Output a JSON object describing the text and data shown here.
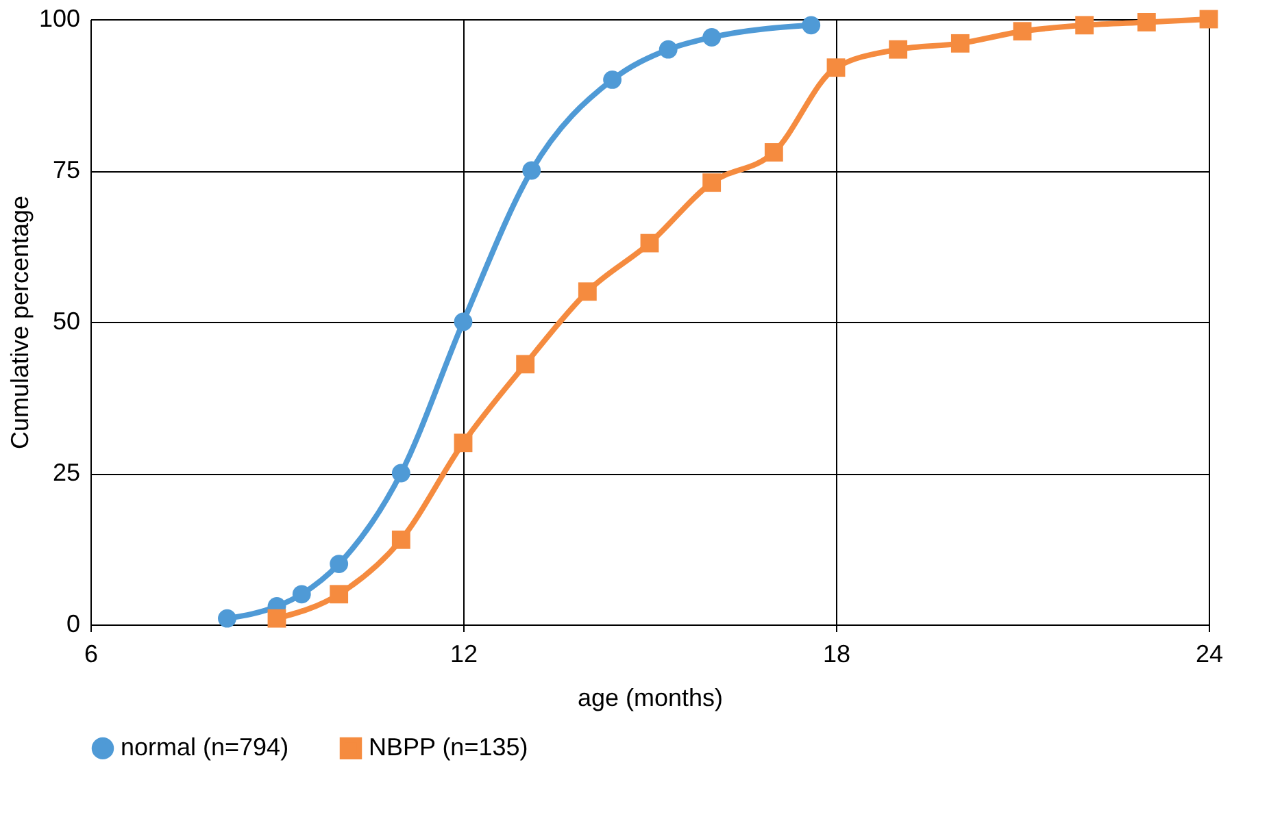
{
  "chart_data": {
    "type": "line",
    "xlabel": "age (months)",
    "ylabel": "Cumulative percentage",
    "xlim": [
      6,
      24
    ],
    "xticks": [
      6,
      12,
      18,
      24
    ],
    "ylim": [
      0,
      100
    ],
    "yticks": [
      0,
      25,
      50,
      75,
      100
    ],
    "grid": true,
    "legend": "bottom",
    "series": [
      {
        "name": "normal (n=794)",
        "color": "#4f9ad6",
        "marker": "circle",
        "x": [
          8.2,
          9.0,
          9.4,
          10.0,
          11.0,
          12.0,
          13.1,
          14.4,
          15.3,
          16.0,
          17.6
        ],
        "values": [
          1,
          3,
          5,
          10,
          25,
          50,
          75,
          90,
          95,
          97,
          99
        ]
      },
      {
        "name": "NBPP (n=135)",
        "color": "#f58b3f",
        "marker": "square",
        "x": [
          9,
          10,
          11,
          12,
          13,
          14,
          15,
          16,
          17,
          18,
          19,
          20,
          21,
          22,
          23,
          24
        ],
        "values": [
          1,
          5,
          14,
          30,
          43,
          55,
          63,
          73,
          78,
          92,
          95,
          96,
          98,
          99,
          99.5,
          100
        ]
      }
    ]
  }
}
